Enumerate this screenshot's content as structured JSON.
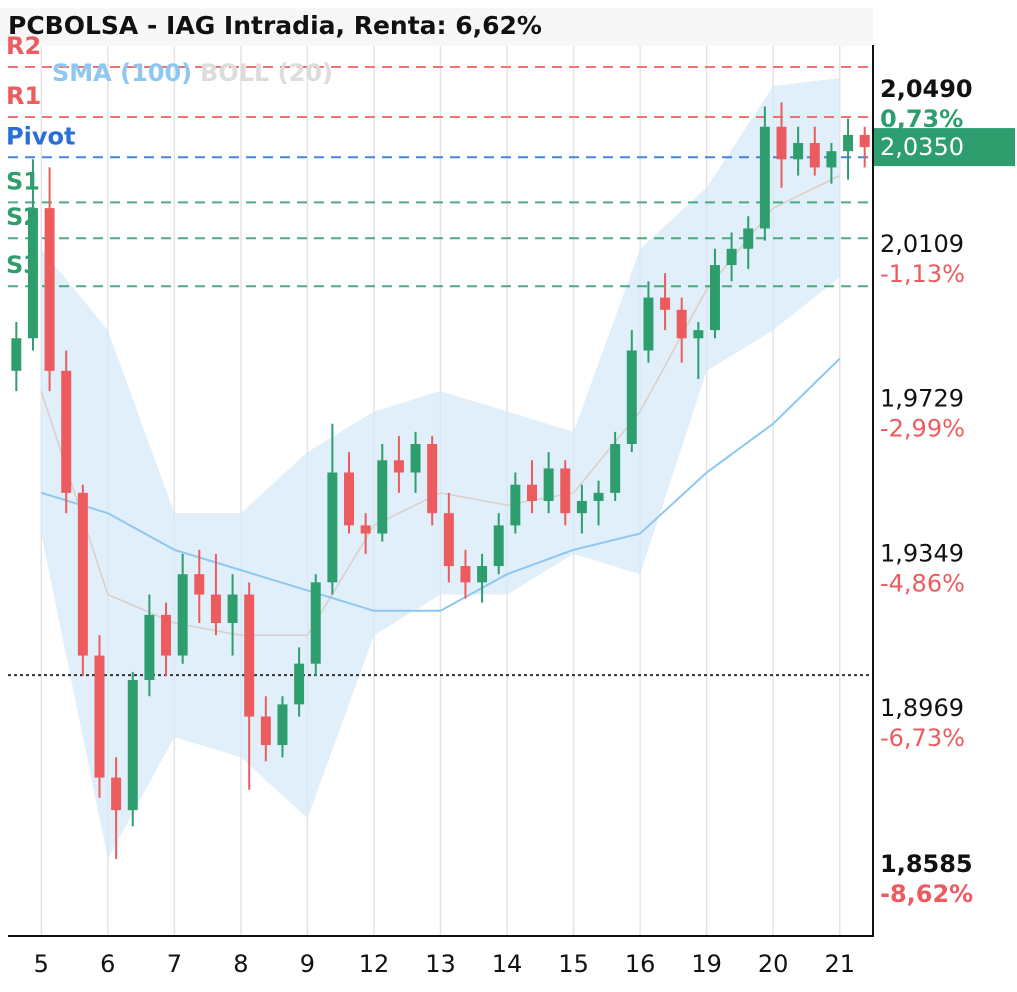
{
  "chart_data": {
    "type": "candlestick",
    "title": "PCBOLSA - IAG Intradia, Renta: 6,62%",
    "days": [
      "5",
      "6",
      "7",
      "8",
      "9",
      "12",
      "13",
      "14",
      "15",
      "16",
      "19",
      "20",
      "21"
    ],
    "candles_per_day": 4,
    "up_color": "#2e9e6e",
    "down_color": "#ec5b5e",
    "ohlc": [
      [
        1.98,
        1.992,
        1.975,
        1.988
      ],
      [
        1.988,
        2.032,
        1.985,
        2.02
      ],
      [
        2.02,
        2.03,
        1.975,
        1.98
      ],
      [
        1.98,
        1.985,
        1.945,
        1.95
      ],
      [
        1.95,
        1.952,
        1.905,
        1.91
      ],
      [
        1.91,
        1.915,
        1.875,
        1.88
      ],
      [
        1.88,
        1.885,
        1.86,
        1.872
      ],
      [
        1.872,
        1.906,
        1.868,
        1.904
      ],
      [
        1.904,
        1.925,
        1.9,
        1.92
      ],
      [
        1.92,
        1.923,
        1.905,
        1.91
      ],
      [
        1.91,
        1.935,
        1.908,
        1.93
      ],
      [
        1.93,
        1.936,
        1.918,
        1.925
      ],
      [
        1.925,
        1.935,
        1.915,
        1.918
      ],
      [
        1.918,
        1.93,
        1.91,
        1.925
      ],
      [
        1.925,
        1.928,
        1.877,
        1.895
      ],
      [
        1.895,
        1.9,
        1.884,
        1.888
      ],
      [
        1.888,
        1.9,
        1.885,
        1.898
      ],
      [
        1.898,
        1.912,
        1.895,
        1.908
      ],
      [
        1.908,
        1.93,
        1.905,
        1.928
      ],
      [
        1.928,
        1.967,
        1.925,
        1.955
      ],
      [
        1.955,
        1.96,
        1.94,
        1.942
      ],
      [
        1.942,
        1.945,
        1.935,
        1.94
      ],
      [
        1.94,
        1.962,
        1.938,
        1.958
      ],
      [
        1.958,
        1.964,
        1.95,
        1.955
      ],
      [
        1.955,
        1.965,
        1.95,
        1.962
      ],
      [
        1.962,
        1.964,
        1.942,
        1.945
      ],
      [
        1.945,
        1.95,
        1.928,
        1.932
      ],
      [
        1.932,
        1.936,
        1.924,
        1.928
      ],
      [
        1.928,
        1.935,
        1.923,
        1.932
      ],
      [
        1.932,
        1.945,
        1.93,
        1.942
      ],
      [
        1.942,
        1.955,
        1.94,
        1.952
      ],
      [
        1.952,
        1.958,
        1.945,
        1.948
      ],
      [
        1.948,
        1.96,
        1.945,
        1.956
      ],
      [
        1.956,
        1.958,
        1.942,
        1.945
      ],
      [
        1.945,
        1.952,
        1.94,
        1.948
      ],
      [
        1.948,
        1.953,
        1.942,
        1.95
      ],
      [
        1.95,
        1.965,
        1.948,
        1.962
      ],
      [
        1.962,
        1.99,
        1.96,
        1.985
      ],
      [
        1.985,
        2.002,
        1.982,
        1.998
      ],
      [
        1.998,
        2.004,
        1.99,
        1.995
      ],
      [
        1.995,
        1.998,
        1.982,
        1.988
      ],
      [
        1.988,
        1.992,
        1.978,
        1.99
      ],
      [
        1.99,
        2.01,
        1.988,
        2.006
      ],
      [
        2.006,
        2.014,
        2.002,
        2.01
      ],
      [
        2.01,
        2.018,
        2.005,
        2.015
      ],
      [
        2.015,
        2.045,
        2.012,
        2.04
      ],
      [
        2.04,
        2.046,
        2.025,
        2.032
      ],
      [
        2.032,
        2.04,
        2.028,
        2.036
      ],
      [
        2.036,
        2.04,
        2.028,
        2.03
      ],
      [
        2.03,
        2.036,
        2.026,
        2.034
      ],
      [
        2.034,
        2.042,
        2.027,
        2.038
      ],
      [
        2.038,
        2.04,
        2.03,
        2.035
      ]
    ],
    "sma": {
      "name": "SMA (100)",
      "color": "#8ec8f0",
      "values": [
        1.95,
        1.945,
        1.936,
        1.931,
        1.926,
        1.921,
        1.921,
        1.93,
        1.936,
        1.94,
        1.955,
        1.967,
        1.983
      ]
    },
    "boll": {
      "name": "BOLL (20)",
      "color": "#d6eaf8",
      "mid_color": "#d9cfc8",
      "upper": [
        2.01,
        1.99,
        1.945,
        1.945,
        1.96,
        1.97,
        1.975,
        1.97,
        1.965,
        2.01,
        2.025,
        2.05,
        2.052
      ],
      "middle": [
        1.975,
        1.925,
        1.918,
        1.915,
        1.915,
        1.942,
        1.95,
        1.947,
        1.95,
        1.97,
        2.0,
        2.02,
        2.028
      ],
      "lower": [
        1.94,
        1.86,
        1.89,
        1.885,
        1.87,
        1.915,
        1.925,
        1.925,
        1.935,
        1.93,
        1.98,
        1.99,
        2.003
      ]
    },
    "pivots": [
      {
        "name": "R2",
        "value": 2.0547,
        "color": "#ec5b5e"
      },
      {
        "name": "R1",
        "value": 2.0424,
        "color": "#ec5b5e"
      },
      {
        "name": "Pivot",
        "value": 2.0325,
        "color": "#2a6fd6"
      },
      {
        "name": "S1",
        "value": 2.0214,
        "color": "#2e9e6e"
      },
      {
        "name": "S2",
        "value": 2.0126,
        "color": "#2e9e6e"
      },
      {
        "name": "S3",
        "value": 2.0008,
        "color": "#2e9e6e"
      }
    ],
    "reference_line": 1.9052,
    "last_price": {
      "value": 2.035,
      "label": "2,0350",
      "color": "#2e9e6e"
    },
    "ylim": [
      1.8413,
      2.0601
    ],
    "yticks": [
      {
        "value": 2.049,
        "label": "2,0490"
      },
      {
        "value": 2.0109,
        "label": "2,0109"
      },
      {
        "value": 1.9729,
        "label": "1,9729"
      },
      {
        "value": 1.9349,
        "label": "1,9349"
      },
      {
        "value": 1.8969,
        "label": "1,8969"
      },
      {
        "value": 1.8585,
        "label": "1,8585"
      }
    ],
    "ytick_changes": [
      {
        "value": 0.73,
        "label": "0,73%"
      },
      {
        "value": -1.13,
        "label": "-1,13%"
      },
      {
        "value": -2.99,
        "label": "-2,99%"
      },
      {
        "value": -4.86,
        "label": "-4,86%"
      },
      {
        "value": -6.73,
        "label": "-6,73%"
      },
      {
        "value": -8.62,
        "label": "-8,62%"
      }
    ]
  }
}
